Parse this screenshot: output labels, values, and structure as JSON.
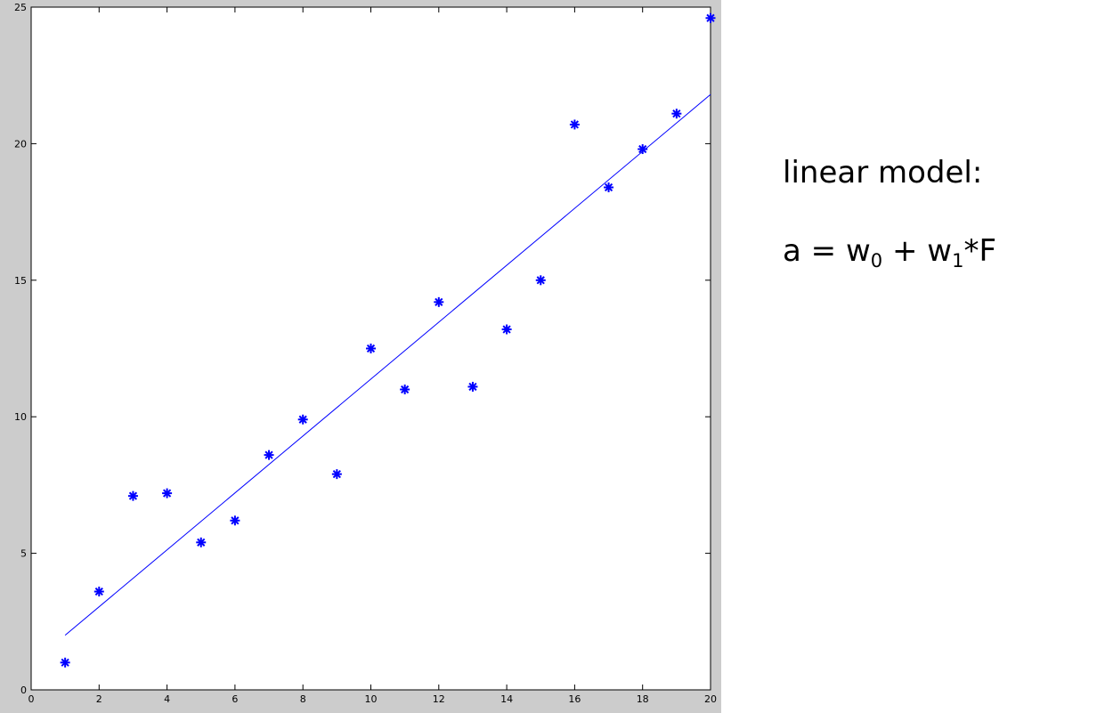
{
  "slide": {
    "model_title": "linear model:",
    "equation": {
      "lhs": "a",
      "equals": "=",
      "w0_base": "w",
      "w0_sub": "0",
      "plus": "+",
      "w1_base": "w",
      "w1_sub": "1",
      "tail": "*F"
    }
  },
  "chart_data": {
    "type": "scatter",
    "title": "",
    "xlabel": "",
    "ylabel": "",
    "xlim": [
      0,
      20
    ],
    "ylim": [
      0,
      25
    ],
    "xticks": [
      0,
      2,
      4,
      6,
      8,
      10,
      12,
      14,
      16,
      18,
      20
    ],
    "yticks": [
      0,
      5,
      10,
      15,
      20,
      25
    ],
    "grid": false,
    "legend": "none",
    "series": [
      {
        "kind": "points",
        "marker": "asterisk",
        "color": "#0000ff",
        "x": [
          1,
          2,
          3,
          4,
          5,
          6,
          7,
          8,
          9,
          10,
          11,
          12,
          13,
          14,
          15,
          16,
          17,
          18,
          19,
          20
        ],
        "y": [
          1.0,
          3.6,
          7.1,
          7.2,
          5.4,
          6.2,
          8.6,
          9.9,
          7.9,
          12.5,
          11.0,
          14.2,
          11.1,
          13.2,
          15.0,
          20.7,
          18.4,
          19.8,
          21.1,
          24.6
        ]
      },
      {
        "kind": "line",
        "color": "#0000ff",
        "x": [
          1,
          20
        ],
        "y": [
          2.0,
          21.8
        ]
      }
    ]
  }
}
